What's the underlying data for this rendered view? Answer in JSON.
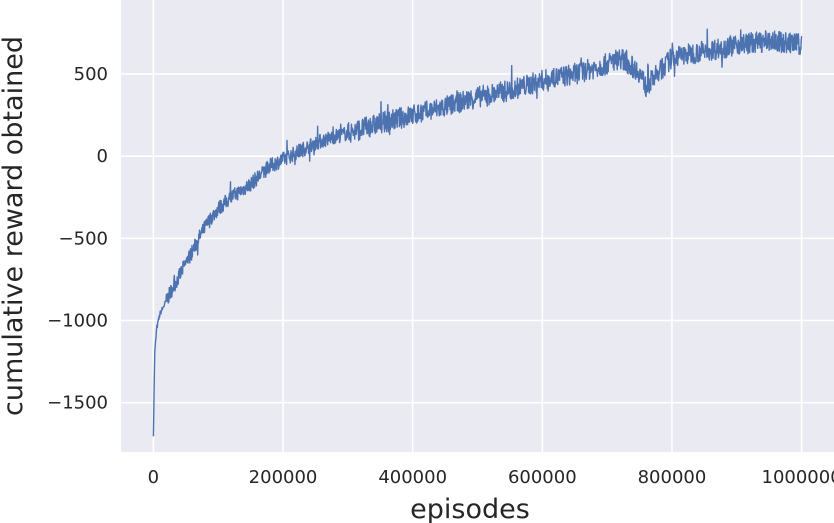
{
  "chart_data": {
    "type": "line",
    "title": "",
    "xlabel": "episodes",
    "ylabel": "cumulative reward obtained",
    "xlim": [
      -50000,
      1050000
    ],
    "ylim": [
      -1800,
      950
    ],
    "x_ticks": [
      0,
      200000,
      400000,
      600000,
      800000,
      1000000
    ],
    "x_tick_labels": [
      "0",
      "200000",
      "400000",
      "600000",
      "800000",
      "1000000"
    ],
    "y_ticks": [
      -1500,
      -1000,
      -500,
      0,
      500
    ],
    "y_tick_labels": [
      "−1500",
      "−1000",
      "−500",
      "0",
      "500"
    ],
    "grid": true,
    "background": "#EAEAF2",
    "line_color": "#4C72B0",
    "series": [
      {
        "x": [
          0,
          2000,
          5000,
          10000,
          15000,
          20000,
          30000,
          40000,
          50000,
          60000,
          70000,
          80000,
          90000,
          100000,
          120000,
          150000,
          180000,
          200000,
          220000,
          250000,
          280000,
          300000,
          350000,
          400000,
          450000,
          500000,
          550000,
          600000,
          650000,
          700000,
          720000,
          750000,
          760000,
          800000,
          850000,
          880000,
          900000,
          950000,
          1000000
        ],
        "y": [
          -1690,
          -1200,
          -1050,
          -960,
          -920,
          -880,
          -800,
          -730,
          -650,
          -580,
          -500,
          -430,
          -370,
          -320,
          -250,
          -170,
          -60,
          -20,
          20,
          80,
          120,
          140,
          200,
          250,
          300,
          360,
          400,
          460,
          500,
          560,
          600,
          510,
          420,
          600,
          640,
          660,
          680,
          700,
          680
        ]
      }
    ]
  }
}
